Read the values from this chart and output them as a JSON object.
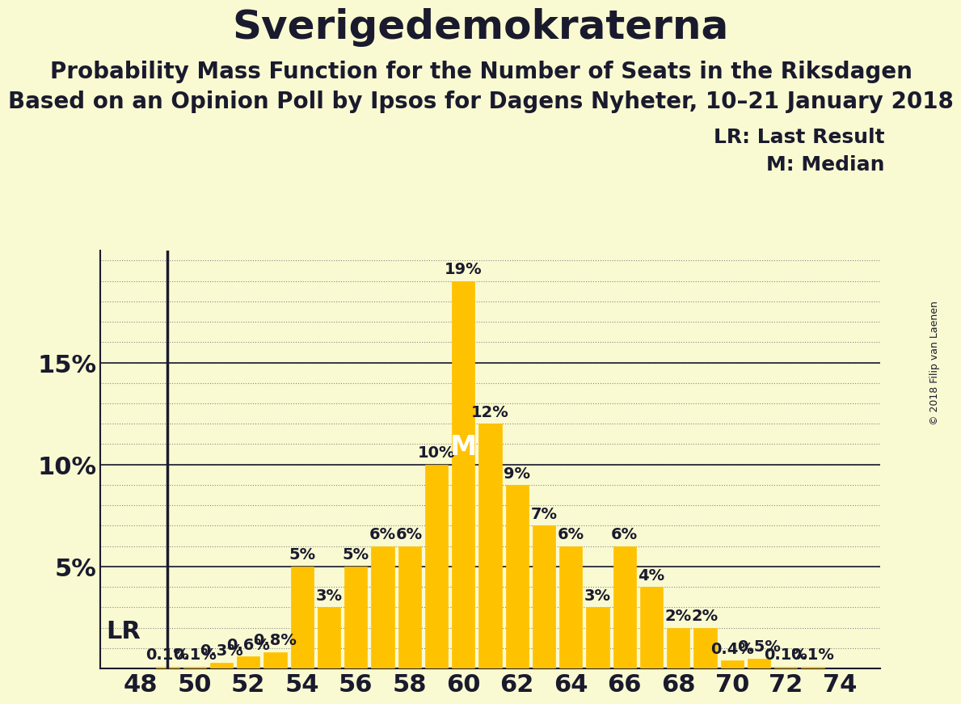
{
  "title": "Sverigedemokraterna",
  "subtitle1": "Probability Mass Function for the Number of Seats in the Riksdagen",
  "subtitle2": "Based on an Opinion Poll by Ipsos for Dagens Nyheter, 10–21 January 2018",
  "copyright": "© 2018 Filip van Laenen",
  "legend1": "LR: Last Result",
  "legend2": "M: Median",
  "lr_label": "LR",
  "median_label": "M",
  "lr_seat": 49,
  "median_seat": 60,
  "background_color": "#FAFAD2",
  "bar_color": "#FFC200",
  "bar_edge_color": "#FFC200",
  "text_color": "#1a1a2e",
  "grid_color": "#888888",
  "seats": [
    48,
    49,
    50,
    51,
    52,
    53,
    54,
    55,
    56,
    57,
    58,
    59,
    60,
    61,
    62,
    63,
    64,
    65,
    66,
    67,
    68,
    69,
    70,
    71,
    72,
    73,
    74
  ],
  "probabilities": [
    0.0,
    0.1,
    0.1,
    0.3,
    0.6,
    0.8,
    5.0,
    3.0,
    5.0,
    6.0,
    6.0,
    10.0,
    19.0,
    12.0,
    9.0,
    7.0,
    6.0,
    3.0,
    6.0,
    4.0,
    2.0,
    2.0,
    0.4,
    0.5,
    0.1,
    0.1,
    0.0
  ],
  "ylim": [
    0,
    20.5
  ],
  "yticks": [
    0,
    5,
    10,
    15
  ],
  "ytick_labels": [
    "",
    "5%",
    "10%",
    "15%"
  ],
  "xlabel_fontsize": 22,
  "ylabel_fontsize": 22,
  "title_fontsize": 36,
  "subtitle_fontsize": 20,
  "bar_label_fontsize": 14,
  "lr_fontsize": 22,
  "median_fontsize": 22
}
